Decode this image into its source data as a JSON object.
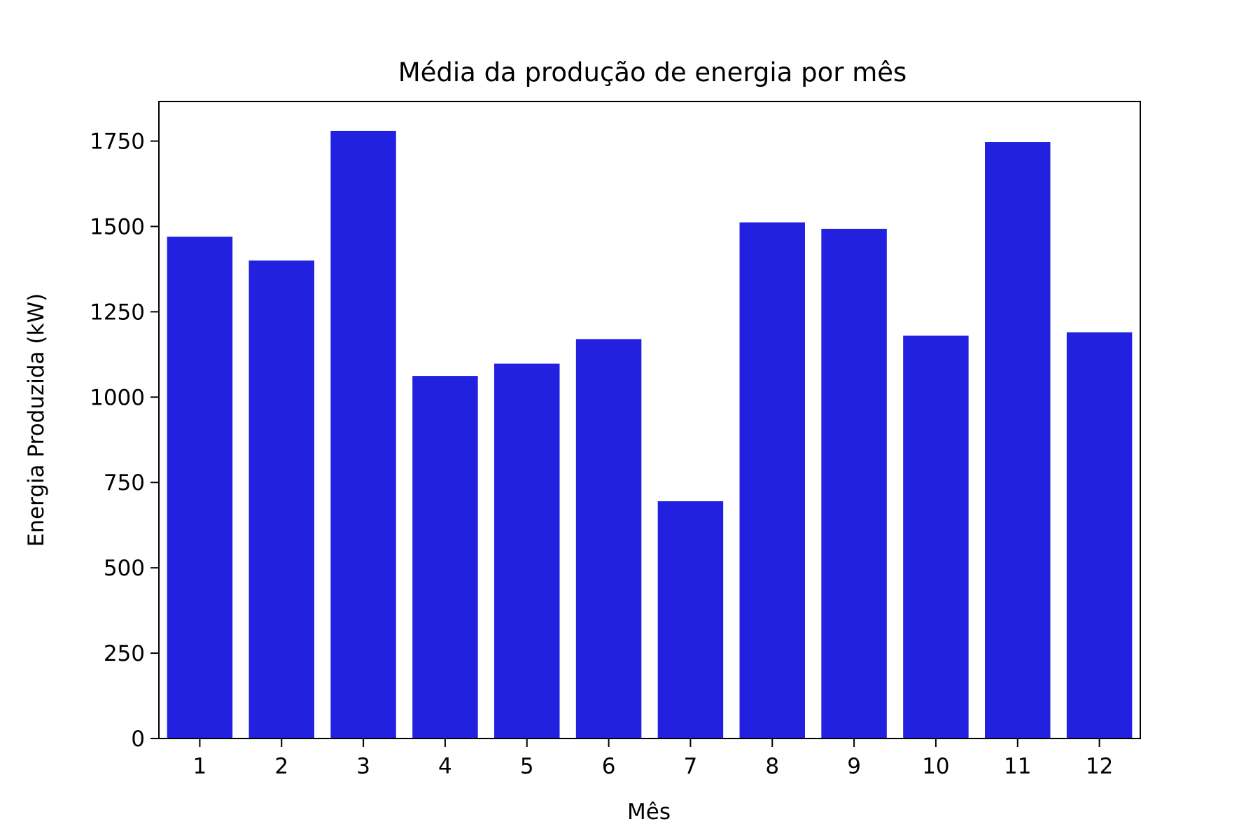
{
  "chart_data": {
    "type": "bar",
    "title": "Média da produção de energia por mês",
    "xlabel": "Mês",
    "ylabel": "Energia Produzida (kW)",
    "categories": [
      "1",
      "2",
      "3",
      "4",
      "5",
      "6",
      "7",
      "8",
      "9",
      "10",
      "11",
      "12"
    ],
    "values": [
      1470,
      1400,
      1780,
      1062,
      1098,
      1170,
      695,
      1512,
      1493,
      1180,
      1747,
      1190
    ],
    "ylim": [
      0,
      1866
    ],
    "yticks": [
      0,
      250,
      500,
      750,
      1000,
      1250,
      1500,
      1750
    ],
    "grid": false,
    "legend": "none",
    "bar_color": "#2121df",
    "axis_color": "#000000"
  }
}
